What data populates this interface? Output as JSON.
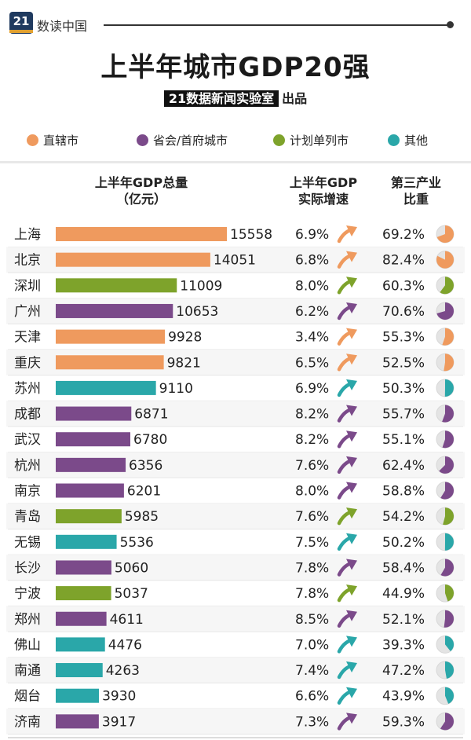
{
  "header": {
    "logo": "21",
    "brand": "数读中国",
    "title": "上半年城市GDP20强",
    "subtitle_box": "21数据新闻实验室",
    "subtitle_rest": "出品"
  },
  "legend": [
    {
      "label": "直辖市",
      "color": "#ef9a5e"
    },
    {
      "label": "省会/首府城市",
      "color": "#7b4a8a"
    },
    {
      "label": "计划单列市",
      "color": "#7ea32b"
    },
    {
      "label": "其他",
      "color": "#2aa7a9"
    }
  ],
  "columns": {
    "gdp": "上半年GDP总量\n（亿元）",
    "growth": "上半年GDP\n实际增速",
    "tertiary": "第三产业\n比重"
  },
  "chart_data": {
    "type": "bar",
    "title": "上半年城市GDP20强",
    "categories": [
      "上海",
      "北京",
      "深圳",
      "广州",
      "天津",
      "重庆",
      "苏州",
      "成都",
      "武汉",
      "杭州",
      "南京",
      "青岛",
      "无锡",
      "长沙",
      "宁波",
      "郑州",
      "佛山",
      "南通",
      "烟台",
      "济南"
    ],
    "city_type": [
      "直辖市",
      "直辖市",
      "计划单列市",
      "省会/首府城市",
      "直辖市",
      "直辖市",
      "其他",
      "省会/首府城市",
      "省会/首府城市",
      "省会/首府城市",
      "省会/首府城市",
      "计划单列市",
      "其他",
      "省会/首府城市",
      "计划单列市",
      "省会/首府城市",
      "其他",
      "其他",
      "其他",
      "省会/首府城市"
    ],
    "series": [
      {
        "name": "上半年GDP总量（亿元）",
        "values": [
          15558,
          14051,
          11009,
          10653,
          9928,
          9821,
          9110,
          6871,
          6780,
          6356,
          6201,
          5985,
          5536,
          5060,
          5037,
          4611,
          4476,
          4263,
          3930,
          3917
        ]
      },
      {
        "name": "上半年GDP实际增速",
        "values": [
          "6.9%",
          "6.8%",
          "8.0%",
          "6.2%",
          "3.4%",
          "6.5%",
          "6.9%",
          "8.2%",
          "8.2%",
          "7.6%",
          "8.0%",
          "7.6%",
          "7.5%",
          "7.8%",
          "7.8%",
          "8.5%",
          "7.0%",
          "7.4%",
          "6.6%",
          "7.3%"
        ]
      },
      {
        "name": "第三产业比重",
        "values": [
          "69.2%",
          "82.4%",
          "60.3%",
          "70.6%",
          "55.3%",
          "52.5%",
          "50.3%",
          "55.7%",
          "55.1%",
          "62.4%",
          "58.8%",
          "54.2%",
          "50.2%",
          "58.4%",
          "44.9%",
          "52.1%",
          "39.3%",
          "47.2%",
          "43.9%",
          "59.3%"
        ]
      }
    ],
    "xlim": [
      0,
      15558
    ]
  }
}
